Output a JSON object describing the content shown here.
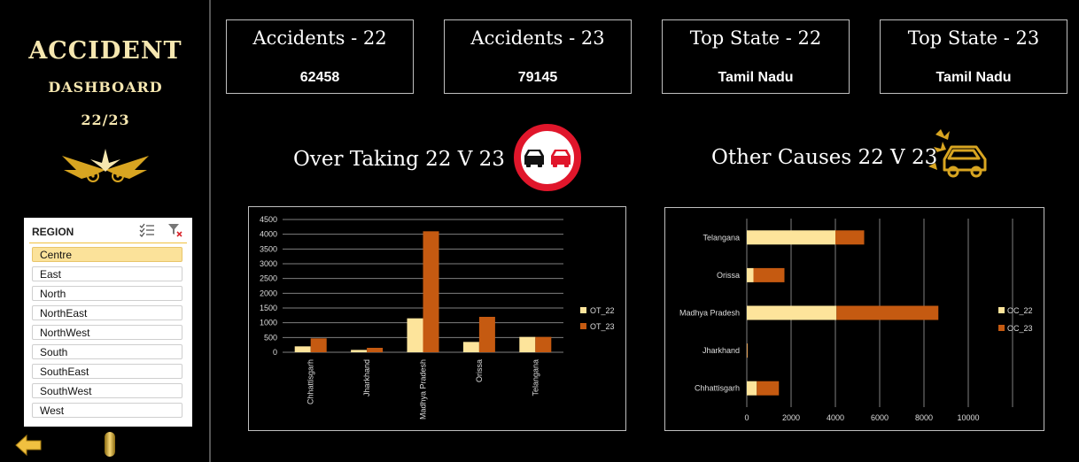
{
  "sidebar": {
    "title_line1": "ACCIDENT",
    "title_line2": "DASHBOARD",
    "title_line3": "22/23",
    "slicer": {
      "title": "REGION",
      "items": [
        {
          "label": "Centre",
          "selected": true
        },
        {
          "label": "East",
          "selected": false
        },
        {
          "label": "North",
          "selected": false
        },
        {
          "label": "NorthEast",
          "selected": false
        },
        {
          "label": "NorthWest",
          "selected": false
        },
        {
          "label": "South",
          "selected": false
        },
        {
          "label": "SouthEast",
          "selected": false
        },
        {
          "label": "SouthWest",
          "selected": false
        },
        {
          "label": "West",
          "selected": false
        }
      ]
    }
  },
  "kpis": [
    {
      "label": "Accidents - 22",
      "value": "62458"
    },
    {
      "label": "Accidents - 23",
      "value": "79145"
    },
    {
      "label": "Top State - 22",
      "value": "Tamil Nadu"
    },
    {
      "label": "Top State - 23",
      "value": "Tamil Nadu"
    }
  ],
  "sections": {
    "overtaking_title": "Over Taking 22 V 23",
    "other_title": "Other Causes 22 V 23"
  },
  "colors": {
    "series_22": "#fde49b",
    "series_23": "#c55a11",
    "accent_gold": "#d8a521",
    "no_overtaking_red": "#e0162b"
  },
  "chart_data": [
    {
      "type": "bar",
      "orientation": "vertical",
      "categories": [
        "Chhattisgarh",
        "Jharkhand",
        "Madhya Pradesh",
        "Orissa",
        "Telangana"
      ],
      "series": [
        {
          "name": "OT_22",
          "values": [
            200,
            80,
            1150,
            350,
            520
          ]
        },
        {
          "name": "OT_23",
          "values": [
            470,
            150,
            4100,
            1200,
            520
          ]
        }
      ],
      "ylim": [
        0,
        4500
      ],
      "yticks": [
        0,
        500,
        1000,
        1500,
        2000,
        2500,
        3000,
        3500,
        4000,
        4500
      ],
      "grid": true,
      "legend": "right"
    },
    {
      "type": "bar",
      "orientation": "horizontal",
      "stacked": true,
      "categories": [
        "Telangana",
        "Orissa",
        "Madhya Pradesh",
        "Jharkhand",
        "Chhattisgarh"
      ],
      "series": [
        {
          "name": "OC_22",
          "values": [
            4000,
            300,
            4050,
            20,
            450
          ]
        },
        {
          "name": "OC_23",
          "values": [
            1300,
            1400,
            4600,
            20,
            1000
          ]
        }
      ],
      "xlim": [
        0,
        12000
      ],
      "xticks": [
        0,
        2000,
        4000,
        6000,
        8000,
        10000
      ],
      "grid": true,
      "legend": "right"
    }
  ]
}
